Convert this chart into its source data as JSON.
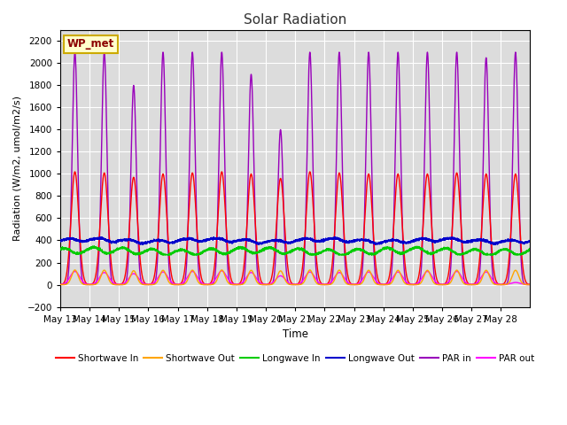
{
  "title": "Solar Radiation",
  "xlabel": "Time",
  "ylabel": "Radiation (W/m2, umol/m2/s)",
  "ylim": [
    -200,
    2300
  ],
  "yticks": [
    -200,
    0,
    200,
    400,
    600,
    800,
    1000,
    1200,
    1400,
    1600,
    1800,
    2000,
    2200
  ],
  "station_label": "WP_met",
  "n_days": 16,
  "background_color": "#dcdcdc",
  "grid_color": "#ffffff",
  "series": {
    "shortwave_in": {
      "color": "#ff0000",
      "label": "Shortwave In"
    },
    "shortwave_out": {
      "color": "#ffa500",
      "label": "Shortwave Out"
    },
    "longwave_in": {
      "color": "#00cc00",
      "label": "Longwave In"
    },
    "longwave_out": {
      "color": "#0000cc",
      "label": "Longwave Out"
    },
    "par_in": {
      "color": "#9900bb",
      "label": "PAR in"
    },
    "par_out": {
      "color": "#ff00ff",
      "label": "PAR out"
    }
  },
  "x_tick_labels": [
    "May 13",
    "May 14",
    "May 15",
    "May 16",
    "May 17",
    "May 18",
    "May 19",
    "May 20",
    "May 21",
    "May 22",
    "May 23",
    "May 24",
    "May 25",
    "May 26",
    "May 27",
    "May 28"
  ]
}
